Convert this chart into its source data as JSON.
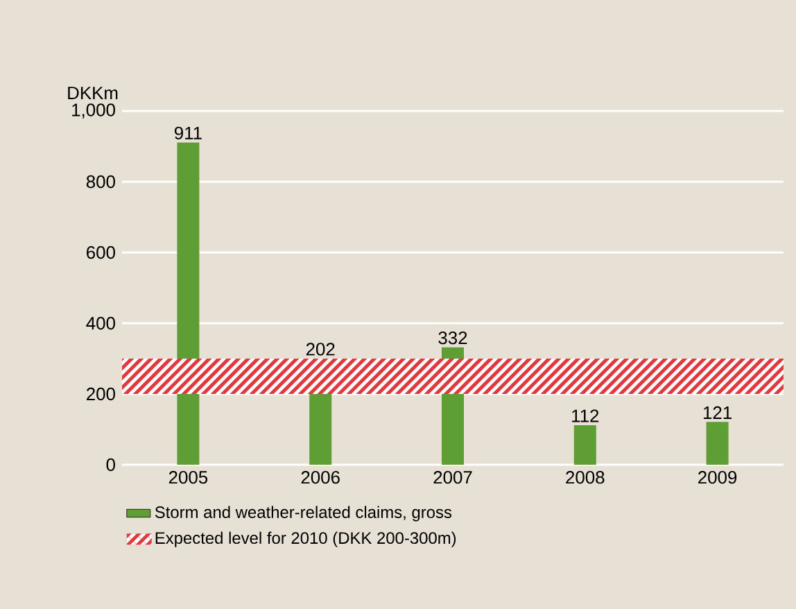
{
  "chart_data": {
    "type": "bar",
    "categories": [
      "2005",
      "2006",
      "2007",
      "2008",
      "2009"
    ],
    "series": [
      {
        "name": "Storm and weather-related claims, gross",
        "color": "#5e9e34",
        "values": [
          911,
          202,
          332,
          112,
          121
        ]
      }
    ],
    "ylabel": "DKKm",
    "ylim": [
      0,
      1000
    ],
    "yticks": [
      0,
      200,
      400,
      600,
      800,
      {
        "value": 1000,
        "label": "1,000"
      }
    ],
    "bands": [
      {
        "axis": "y",
        "from": 200,
        "to": 300,
        "label": "Expected level for 2010 (DKK 200-300m)",
        "color": "#e0393e"
      }
    ],
    "data_labels": true,
    "grid": "y",
    "legend": "bottom"
  }
}
